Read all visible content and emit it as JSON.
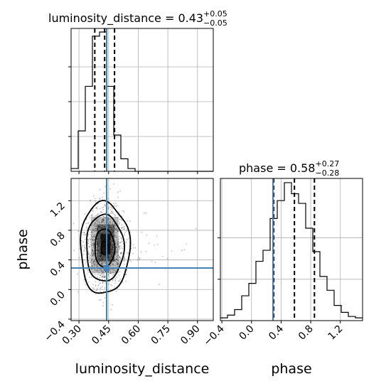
{
  "chart_data": [
    {
      "type": "histogram",
      "panel": "luminosity_distance marginal",
      "title": "luminosity_distance = 0.43",
      "title_sup": "+0.05",
      "title_sub": "−0.05",
      "x_range": [
        0.26,
        0.98
      ],
      "bin_edges": [
        0.26,
        0.296,
        0.332,
        0.368,
        0.404,
        0.44,
        0.476,
        0.512,
        0.548,
        0.584,
        0.62,
        0.656,
        0.692,
        0.728,
        0.764,
        0.8,
        0.836,
        0.872,
        0.908,
        0.944,
        0.98
      ],
      "bin_counts": [
        0.02,
        0.29,
        0.61,
        0.97,
        1.0,
        0.61,
        0.26,
        0.09,
        0.02,
        0.0,
        0.0,
        0.0,
        0.0,
        0.0,
        0.0,
        0.0,
        0.0,
        0.0,
        0.0,
        0.0
      ],
      "quantile_lines": [
        0.38,
        0.43,
        0.48
      ],
      "truth": 0.44,
      "grid": true,
      "truth_color": "#4682b4"
    },
    {
      "type": "contour_scatter",
      "panel": "luminosity_distance vs phase",
      "xlabel": "luminosity_distance",
      "ylabel": "phase",
      "x_range": [
        0.26,
        0.98
      ],
      "y_range": [
        -0.42,
        1.5
      ],
      "xticks": [
        "0.30",
        "0.45",
        "0.60",
        "0.75",
        "0.90"
      ],
      "yticks": [
        "−0.4",
        "0.0",
        "0.4",
        "0.8",
        "1.2"
      ],
      "center": [
        0.43,
        0.58
      ],
      "truth": [
        0.44,
        0.29
      ],
      "truth_color": "#4682b4",
      "grid": true
    },
    {
      "type": "histogram",
      "panel": "phase marginal",
      "title": "phase = 0.58",
      "title_sup": "+0.27",
      "title_sub": "−0.28",
      "xlabel": "phase",
      "x_range": [
        -0.42,
        1.5
      ],
      "xticks": [
        "−0.4",
        "0.0",
        "0.4",
        "0.8",
        "1.2"
      ],
      "bin_edges": [
        -0.42,
        -0.324,
        -0.228,
        -0.132,
        -0.036,
        0.06,
        0.156,
        0.252,
        0.348,
        0.444,
        0.54,
        0.636,
        0.732,
        0.828,
        0.924,
        1.02,
        1.116,
        1.212,
        1.308,
        1.404,
        1.5
      ],
      "bin_counts": [
        0.02,
        0.04,
        0.08,
        0.18,
        0.27,
        0.43,
        0.51,
        0.74,
        0.87,
        1.0,
        0.92,
        0.85,
        0.67,
        0.5,
        0.32,
        0.22,
        0.11,
        0.06,
        0.03,
        0.02
      ],
      "quantile_lines": [
        0.3,
        0.58,
        0.85
      ],
      "truth": 0.29,
      "grid": true,
      "truth_color": "#4682b4"
    }
  ]
}
